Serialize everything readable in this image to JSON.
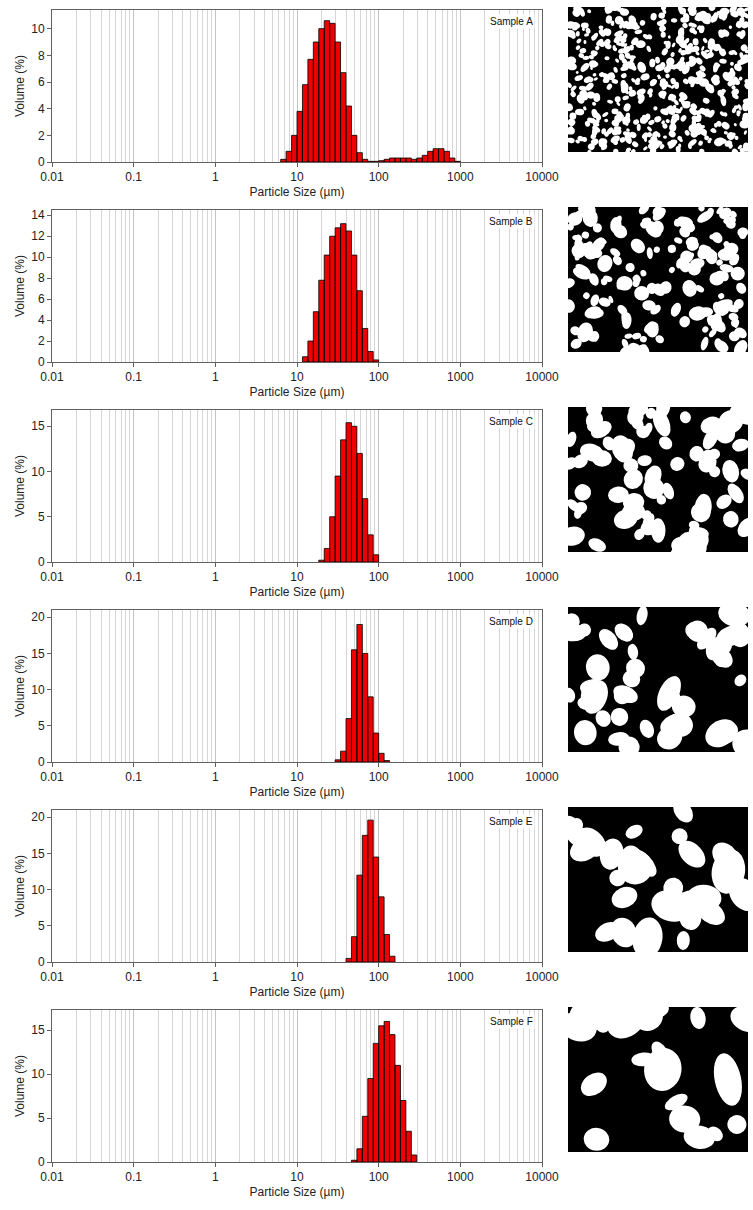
{
  "chart_data": [
    {
      "type": "histogram",
      "title": "Sample A",
      "x_label": "Particle Size (µm)",
      "y_label": "Volume (%)",
      "bins": [
        6.31,
        7.356,
        8.577,
        10,
        11.66,
        13.59,
        15.85,
        18.48,
        21.54,
        25.12,
        29.29,
        34.15,
        39.81,
        46.42,
        54.12,
        63.1,
        73.56,
        85.77,
        100,
        116.6,
        135.9,
        158.5,
        184.8,
        215.4,
        251.2,
        292.9,
        341.5,
        398.1,
        464.2,
        541.2,
        631,
        735.6,
        857.7,
        1000
      ],
      "values": [
        0.2,
        0.8,
        2.0,
        3.8,
        5.8,
        7.7,
        9.0,
        10.0,
        10.6,
        10.4,
        9.0,
        6.7,
        4.2,
        2.0,
        0.7,
        0.2,
        0.05,
        0.05,
        0.1,
        0.2,
        0.3,
        0.3,
        0.3,
        0.3,
        0.2,
        0.3,
        0.5,
        0.8,
        1.0,
        1.0,
        0.8,
        0.3,
        0.05
      ],
      "color": "#ee0000",
      "xlim": [
        0.01,
        10000
      ],
      "xticks": [
        0.01,
        0.1,
        1,
        10,
        100,
        1000,
        10000
      ],
      "ylim": [
        0,
        11.4
      ],
      "yticks": [
        0,
        2,
        4,
        6,
        8,
        10
      ],
      "log": "x",
      "grid": true
    },
    {
      "type": "histogram",
      "title": "Sample B",
      "x_label": "Particle Size (µm)",
      "y_label": "Volume (%)",
      "bins": [
        11.66,
        13.59,
        15.85,
        18.48,
        21.54,
        25.12,
        29.29,
        34.15,
        39.81,
        46.42,
        54.12,
        63.1,
        73.56,
        85.77,
        100
      ],
      "values": [
        0.5,
        2.0,
        4.8,
        7.8,
        10.2,
        12.0,
        12.8,
        13.2,
        12.5,
        10.2,
        6.8,
        3.2,
        1.0,
        0.2
      ],
      "color": "#ee0000",
      "xlim": [
        0.01,
        10000
      ],
      "xticks": [
        0.01,
        0.1,
        1,
        10,
        100,
        1000,
        10000
      ],
      "ylim": [
        0,
        14.5
      ],
      "yticks": [
        0,
        2,
        4,
        6,
        8,
        10,
        12,
        14
      ],
      "log": "x",
      "grid": true
    },
    {
      "type": "histogram",
      "title": "Sample C",
      "x_label": "Particle Size (µm)",
      "y_label": "Volume (%)",
      "bins": [
        18.48,
        21.54,
        25.12,
        29.29,
        34.15,
        39.81,
        46.42,
        54.12,
        63.1,
        73.56,
        85.77,
        100
      ],
      "values": [
        0.2,
        1.5,
        5.0,
        9.5,
        13.5,
        15.4,
        15.0,
        12.0,
        7.0,
        3.0,
        0.8
      ],
      "color": "#ee0000",
      "xlim": [
        0.01,
        10000
      ],
      "xticks": [
        0.01,
        0.1,
        1,
        10,
        100,
        1000,
        10000
      ],
      "ylim": [
        0,
        16.8
      ],
      "yticks": [
        0,
        5,
        10,
        15
      ],
      "log": "x",
      "grid": true
    },
    {
      "type": "histogram",
      "title": "Sample D",
      "x_label": "Particle Size (µm)",
      "y_label": "Volume (%)",
      "bins": [
        29.29,
        34.15,
        39.81,
        46.42,
        54.12,
        63.1,
        73.56,
        85.77,
        100,
        116.6,
        135.9
      ],
      "values": [
        0.3,
        1.5,
        6.0,
        15.5,
        19.0,
        15.0,
        9.0,
        4.0,
        1.2,
        0.2
      ],
      "color": "#ee0000",
      "xlim": [
        0.01,
        10000
      ],
      "xticks": [
        0.01,
        0.1,
        1,
        10,
        100,
        1000,
        10000
      ],
      "ylim": [
        0,
        21
      ],
      "yticks": [
        0,
        5,
        10,
        15,
        20
      ],
      "log": "x",
      "grid": true
    },
    {
      "type": "histogram",
      "title": "Sample E",
      "x_label": "Particle Size (µm)",
      "y_label": "Volume (%)",
      "bins": [
        39.81,
        46.42,
        54.12,
        63.1,
        73.56,
        85.77,
        100,
        116.6,
        135.9,
        158.5
      ],
      "values": [
        0.5,
        3.5,
        12.0,
        17.5,
        19.6,
        14.5,
        9.0,
        3.8,
        0.8
      ],
      "color": "#ee0000",
      "xlim": [
        0.01,
        10000
      ],
      "xticks": [
        0.01,
        0.1,
        1,
        10,
        100,
        1000,
        10000
      ],
      "ylim": [
        0,
        21
      ],
      "yticks": [
        0,
        5,
        10,
        15,
        20
      ],
      "log": "x",
      "grid": true
    },
    {
      "type": "histogram",
      "title": "Sample F",
      "x_label": "Particle Size (µm)",
      "y_label": "Volume (%)",
      "bins": [
        46.42,
        54.12,
        63.1,
        73.56,
        85.77,
        100,
        116.6,
        135.9,
        158.5,
        184.8,
        215.4,
        251.2,
        292.9
      ],
      "values": [
        0.2,
        1.5,
        5.2,
        9.5,
        13.5,
        15.5,
        16.0,
        14.5,
        11.0,
        7.0,
        3.5,
        0.8
      ],
      "color": "#ee0000",
      "xlim": [
        0.01,
        10000
      ],
      "xticks": [
        0.01,
        0.1,
        1,
        10,
        100,
        1000,
        10000
      ],
      "ylim": [
        0,
        17.3
      ],
      "yticks": [
        0,
        5,
        10,
        15
      ],
      "log": "x",
      "grid": true
    }
  ]
}
